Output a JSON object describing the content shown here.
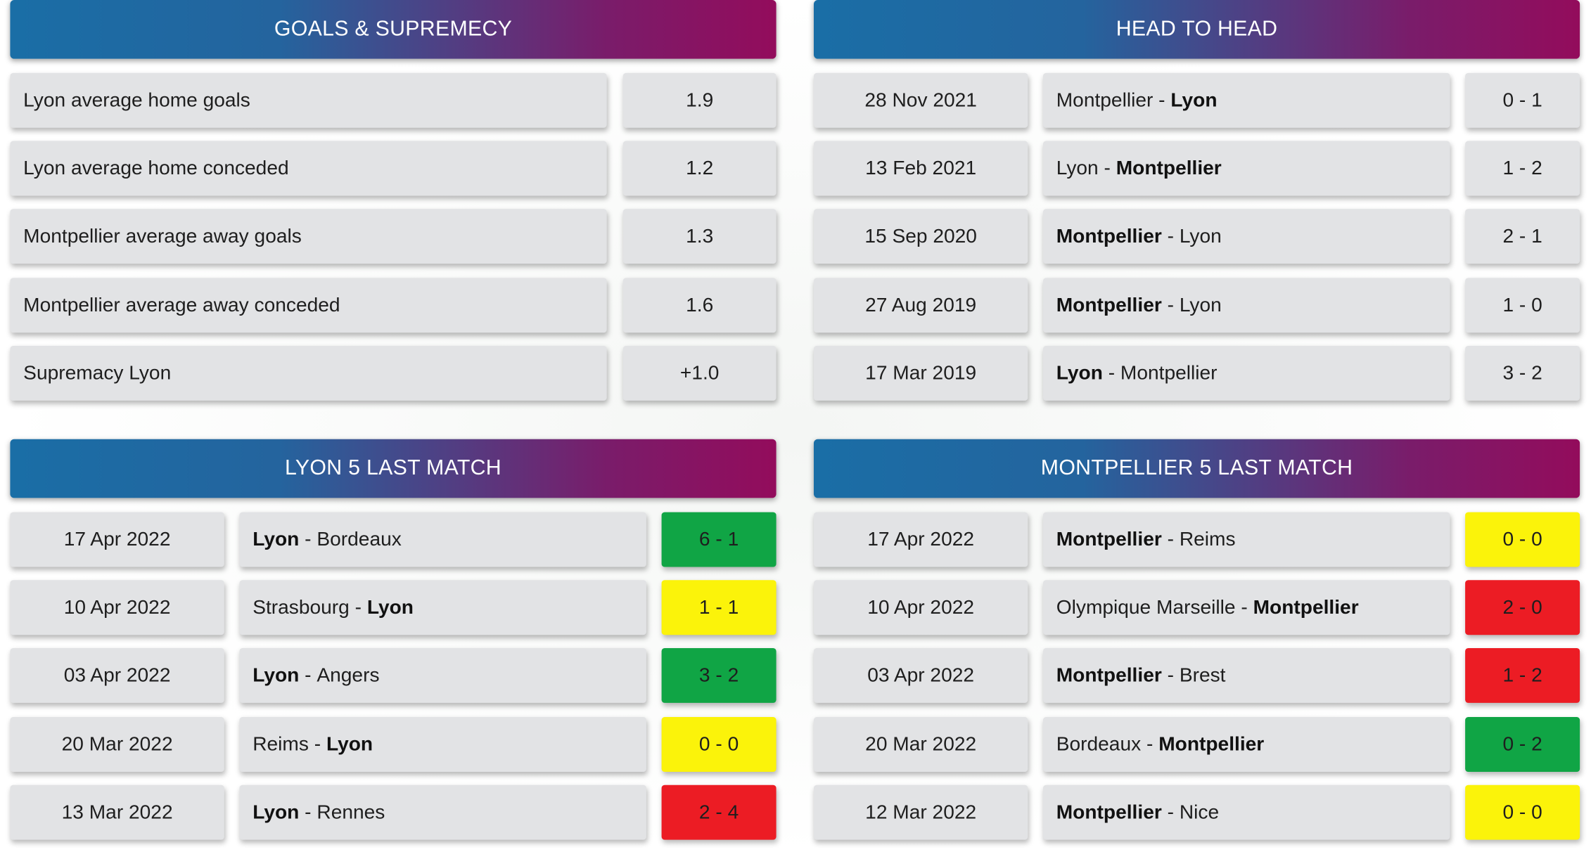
{
  "goals_supremacy": {
    "title": "GOALS & SUPREMECY",
    "rows": [
      {
        "label": "Lyon average home goals",
        "value": "1.9"
      },
      {
        "label": "Lyon average home conceded",
        "value": "1.2"
      },
      {
        "label": "Montpellier average away goals",
        "value": "1.3"
      },
      {
        "label": "Montpellier average away conceded",
        "value": "1.6"
      },
      {
        "label": "Supremacy Lyon",
        "value": "+1.0"
      }
    ]
  },
  "head_to_head": {
    "title": "HEAD TO HEAD",
    "rows": [
      {
        "date": "28 Nov 2021",
        "home": "Montpellier",
        "away": "Lyon",
        "bold": "away",
        "score": "0 - 1"
      },
      {
        "date": "13 Feb 2021",
        "home": "Lyon",
        "away": "Montpellier",
        "bold": "away",
        "score": "1 - 2"
      },
      {
        "date": "15 Sep 2020",
        "home": "Montpellier",
        "away": "Lyon",
        "bold": "home",
        "score": "2 - 1"
      },
      {
        "date": "27 Aug 2019",
        "home": "Montpellier",
        "away": "Lyon",
        "bold": "home",
        "score": "1 - 0"
      },
      {
        "date": "17 Mar 2019",
        "home": "Lyon",
        "away": "Montpellier",
        "bold": "home",
        "score": "3 - 2"
      }
    ]
  },
  "lyon_last": {
    "title": "LYON 5 LAST MATCH",
    "rows": [
      {
        "date": "17 Apr 2022",
        "home": "Lyon",
        "away": "Bordeaux",
        "bold": "home",
        "score": "6 - 1",
        "result": "win"
      },
      {
        "date": "10 Apr 2022",
        "home": "Strasbourg",
        "away": "Lyon",
        "bold": "away",
        "score": "1 - 1",
        "result": "draw"
      },
      {
        "date": "03 Apr 2022",
        "home": "Lyon",
        "away": "Angers",
        "bold": "home",
        "score": "3 - 2",
        "result": "win"
      },
      {
        "date": "20 Mar 2022",
        "home": "Reims",
        "away": "Lyon",
        "bold": "away",
        "score": "0 - 0",
        "result": "draw"
      },
      {
        "date": "13 Mar 2022",
        "home": "Lyon",
        "away": "Rennes",
        "bold": "home",
        "score": "2 - 4",
        "result": "loss"
      }
    ]
  },
  "montpellier_last": {
    "title": "MONTPELLIER 5 LAST MATCH",
    "rows": [
      {
        "date": "17 Apr 2022",
        "home": "Montpellier",
        "away": "Reims",
        "bold": "home",
        "score": "0 - 0",
        "result": "draw"
      },
      {
        "date": "10 Apr 2022",
        "home": "Olympique Marseille",
        "away": "Montpellier",
        "bold": "away",
        "score": "2 - 0",
        "result": "loss"
      },
      {
        "date": "03 Apr 2022",
        "home": "Montpellier",
        "away": "Brest",
        "bold": "home",
        "score": "1 - 2",
        "result": "loss"
      },
      {
        "date": "20 Mar 2022",
        "home": "Bordeaux",
        "away": "Montpellier",
        "bold": "away",
        "score": "0 - 2",
        "result": "win"
      },
      {
        "date": "12 Mar 2022",
        "home": "Montpellier",
        "away": "Nice",
        "bold": "home",
        "score": "0 - 0",
        "result": "draw"
      }
    ]
  },
  "match_separator": " - ",
  "result_colors": {
    "win": "#10a545",
    "draw": "#fbf30a",
    "loss": "#ec1c24"
  }
}
